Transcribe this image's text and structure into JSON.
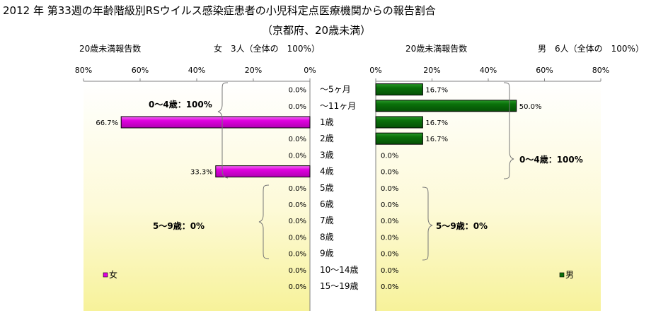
{
  "title": "2012 年 第33週の年齢階級別RSウイルス感染症患者の小児科定点医療機関からの報告割合",
  "subtitle": "（京都府、20歳未満）",
  "chart_data": {
    "type": "bar",
    "categories": [
      "～5ヶ月",
      "～11ヶ月",
      "1歳",
      "2歳",
      "3歳",
      "4歳",
      "5歳",
      "6歳",
      "7歳",
      "8歳",
      "9歳",
      "10～14歳",
      "15～19歳"
    ],
    "xlim": [
      0,
      80
    ],
    "ticks": [
      "0%",
      "20%",
      "40%",
      "60%",
      "80%"
    ],
    "left_ticks": [
      "80%",
      "60%",
      "40%",
      "20%",
      "0%"
    ],
    "grid": false,
    "series": [
      {
        "name": "女",
        "color": "#e000e0",
        "header_label": "20歳未満報告数",
        "header_total": "女　3人（全体の　100%）",
        "values": [
          0,
          0,
          66.7,
          0,
          0,
          33.3,
          0,
          0,
          0,
          0,
          0,
          0,
          0
        ],
        "labels": [
          "0.0%",
          "0.0%",
          "66.7%",
          "0.0%",
          "0.0%",
          "33.3%",
          "0.0%",
          "0.0%",
          "0.0%",
          "0.0%",
          "0.0%",
          "0.0%",
          "0.0%"
        ]
      },
      {
        "name": "男",
        "color": "#0a700a",
        "header_label": "20歳未満報告数",
        "header_total": "男　6人（全体の　100%）",
        "values": [
          16.7,
          50.0,
          16.7,
          16.7,
          0,
          0,
          0,
          0,
          0,
          0,
          0,
          0,
          0
        ],
        "labels": [
          "16.7%",
          "50.0%",
          "16.7%",
          "16.7%",
          "0.0%",
          "0.0%",
          "0.0%",
          "0.0%",
          "0.0%",
          "0.0%",
          "0.0%",
          "0.0%",
          "0.0%"
        ]
      }
    ],
    "annotations": {
      "female_0_4": "0～4歳：100%",
      "female_5_9": "5～9歳：0%",
      "male_0_4": "0～4歳：100%",
      "male_5_9": "5～9歳：0%"
    },
    "legend": "bottom-left / bottom-right"
  }
}
